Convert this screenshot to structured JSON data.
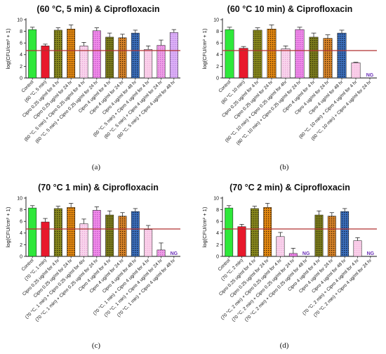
{
  "chart_data": [
    {
      "type": "bar",
      "panel_label": "(a)",
      "title": "(60 °C, 5 min) & Ciprofloxacin",
      "ylabel": "log(CFU/cm² + 1)",
      "ylim": [
        0,
        10
      ],
      "yticks": [
        0,
        2,
        4,
        6,
        8,
        10
      ],
      "threshold": 4.7,
      "categories": [
        "Control",
        "(60 °C, 5 min)",
        "Cipro 0.25 ug/ml for 4 hr",
        "Cipro 0.25 ug/ml for 24 hr",
        "(60 °C, 5 min) + Cipro 0.25 ug/ml for 4 hr",
        "(60 °C, 5 min) + Cipro 0.25 ug/ml for 24 hr",
        "Cipro 4 ug/ml for 4 hr",
        "Cipro 4 ug/ml for 24 hr",
        "Cipro 4 ug/ml for 48 hr",
        "(60 °C, 5 min) + Cipro 4 ug/ml for 4 hr",
        "(60 °C, 5 min) + Cipro 4 ug/ml for 24 hr",
        "(60 °C, 5 min) + Cipro 4 ug/ml for 48 hr"
      ],
      "values": [
        8.3,
        5.5,
        8.2,
        8.4,
        5.5,
        8.1,
        7.0,
        6.9,
        7.7,
        4.9,
        5.6,
        7.8
      ],
      "errors": [
        0.4,
        0.3,
        0.4,
        0.7,
        0.6,
        0.5,
        0.7,
        0.6,
        0.5,
        0.6,
        0.9,
        0.5
      ],
      "ng": []
    },
    {
      "type": "bar",
      "panel_label": "(b)",
      "title": "(60 °C 10 min) & Ciprofloxacin",
      "ylabel": "log(CFU/cm² + 1)",
      "ylim": [
        0,
        10
      ],
      "yticks": [
        0,
        2,
        4,
        6,
        8,
        10
      ],
      "threshold": 4.7,
      "categories": [
        "Control",
        "(60 °C, 10 min)",
        "Cipro 0.25 ug/ml for 4 hr",
        "Cipro 0.25 ug/ml for 24 hr",
        "(60 °C, 10 min) + Cipro 0.25 ug/ml for 4hr",
        "(60 °C, 10 min) + Cipro 0.25 ug/ml for 24 hr",
        "Cipro 4 ug/ml for 4 hr",
        "Cipro 4 ug/ml for 24 hr",
        "Cipro 4 ug/ml for 48 hr",
        "(60 °C, 10 min) + Cipro 4 ug/ml for 4 hr",
        "(60 °C, 10 min) + Cipro 4 ug/ml for 24 hr"
      ],
      "values": [
        8.3,
        5.1,
        8.2,
        8.4,
        5.0,
        8.3,
        7.0,
        6.8,
        7.7,
        2.6,
        0
      ],
      "errors": [
        0.4,
        0.3,
        0.4,
        0.7,
        0.5,
        0.4,
        0.7,
        0.6,
        0.5,
        0.1,
        0
      ],
      "ng": [
        10
      ]
    },
    {
      "type": "bar",
      "panel_label": "(c)",
      "title": "(70 °C 1 min) & Ciprofloxacin",
      "ylabel": "log(CFU/cm² + 1)",
      "ylim": [
        0,
        10
      ],
      "yticks": [
        0,
        2,
        4,
        6,
        8,
        10
      ],
      "threshold": 4.7,
      "categories": [
        "Control",
        "(70 °C, 1 min)",
        "Cipro 0.25 ug/ml for 4 hr",
        "Cipro 0.25 ug/ml for 24 hr",
        "(70 °C, 1 min) + Cipro 0.25 ug/ml for 4hr",
        "(70 °C, 1 min) + Cipro 0.25 ug/ml for 24 hr",
        "Cipro 4 ug/ml for 4 hr",
        "Cipro 4 ug/ml for 24 hr",
        "Cipro 4 ug/ml for 48 hr",
        "(70 °C, 1 min) + Cipro 4 ug/ml for 4 hr",
        "(70 °C, 1 min) + Cipro 4 ug/ml for 24 hr",
        "(70 °C, 1 min) + Cipro 4 ug/ml for 48 hr"
      ],
      "values": [
        8.3,
        5.9,
        8.2,
        8.4,
        5.6,
        7.9,
        7.1,
        6.9,
        7.7,
        4.6,
        1.1,
        0
      ],
      "errors": [
        0.4,
        0.6,
        0.4,
        0.7,
        0.8,
        0.6,
        0.7,
        0.6,
        0.5,
        0.7,
        1.2,
        0
      ],
      "ng": [
        11
      ]
    },
    {
      "type": "bar",
      "panel_label": "(d)",
      "title": "(70 °C 2 min) & Ciprofloxacin",
      "ylabel": "log(CFU/cm² + 1)",
      "ylim": [
        0,
        10
      ],
      "yticks": [
        0,
        2,
        4,
        6,
        8,
        10
      ],
      "threshold": 4.7,
      "categories": [
        "Control",
        "(70 °C, 2 min)",
        "Cipro 0.25 ug/ml for 4 hr",
        "Cipro 0.25 ug/ml for 24 hr",
        "(70 °C, 2 min) + Cipro 0.25 ug/ml for 4 hr",
        "(70 °C, 2 min) + Cipro 0.25 ug/ml for 24 hr",
        "(70 °C, 2 min) + Cipro 0.25 ug/ml for 48 hr",
        "Cipro 4 ug/ml for 4 hr",
        "Cipro 4 ug/ml for 24 hr",
        "Cipro 4 ug/ml for 48 hr",
        "(70 °C, 2 min) + Cipro 4 ug/ml for 4 hr",
        "(70 °C, 2 min) + Cipro 4 ug/ml for 24 hr"
      ],
      "values": [
        8.3,
        5.1,
        8.2,
        8.4,
        3.4,
        0.5,
        0,
        7.1,
        6.9,
        7.7,
        2.7,
        0
      ],
      "errors": [
        0.4,
        0.4,
        0.4,
        0.7,
        0.7,
        0.9,
        0,
        0.7,
        0.6,
        0.5,
        0.5,
        0
      ],
      "ng": [
        6,
        11
      ]
    }
  ],
  "ng_label": "NG",
  "colors": {
    "control": "#2ee83a",
    "heat": "#e8192c",
    "cipro_low": "#8a8a1e",
    "cipro_low_dot": "#3a3a08",
    "cipro_low_24": "#e08a10",
    "cipro_low_24_dot": "#5a3000",
    "heat_low": "#f7cfe9",
    "heat_low_dot": "#e9a6d6",
    "heat_low_24": "#ee7fe6",
    "heat_low_24_dot": "#c24fc8",
    "cipro_high": "#7d7d1d",
    "cipro_high_24": "#d07a20",
    "cipro_high_48": "#3d6fb8",
    "heat_high": "#f8c6e4",
    "heat_high_24": "#e98be0",
    "heat_high_48": "#d9a8f5",
    "threshold": "#b03030",
    "ng": "#6a2fb8"
  }
}
